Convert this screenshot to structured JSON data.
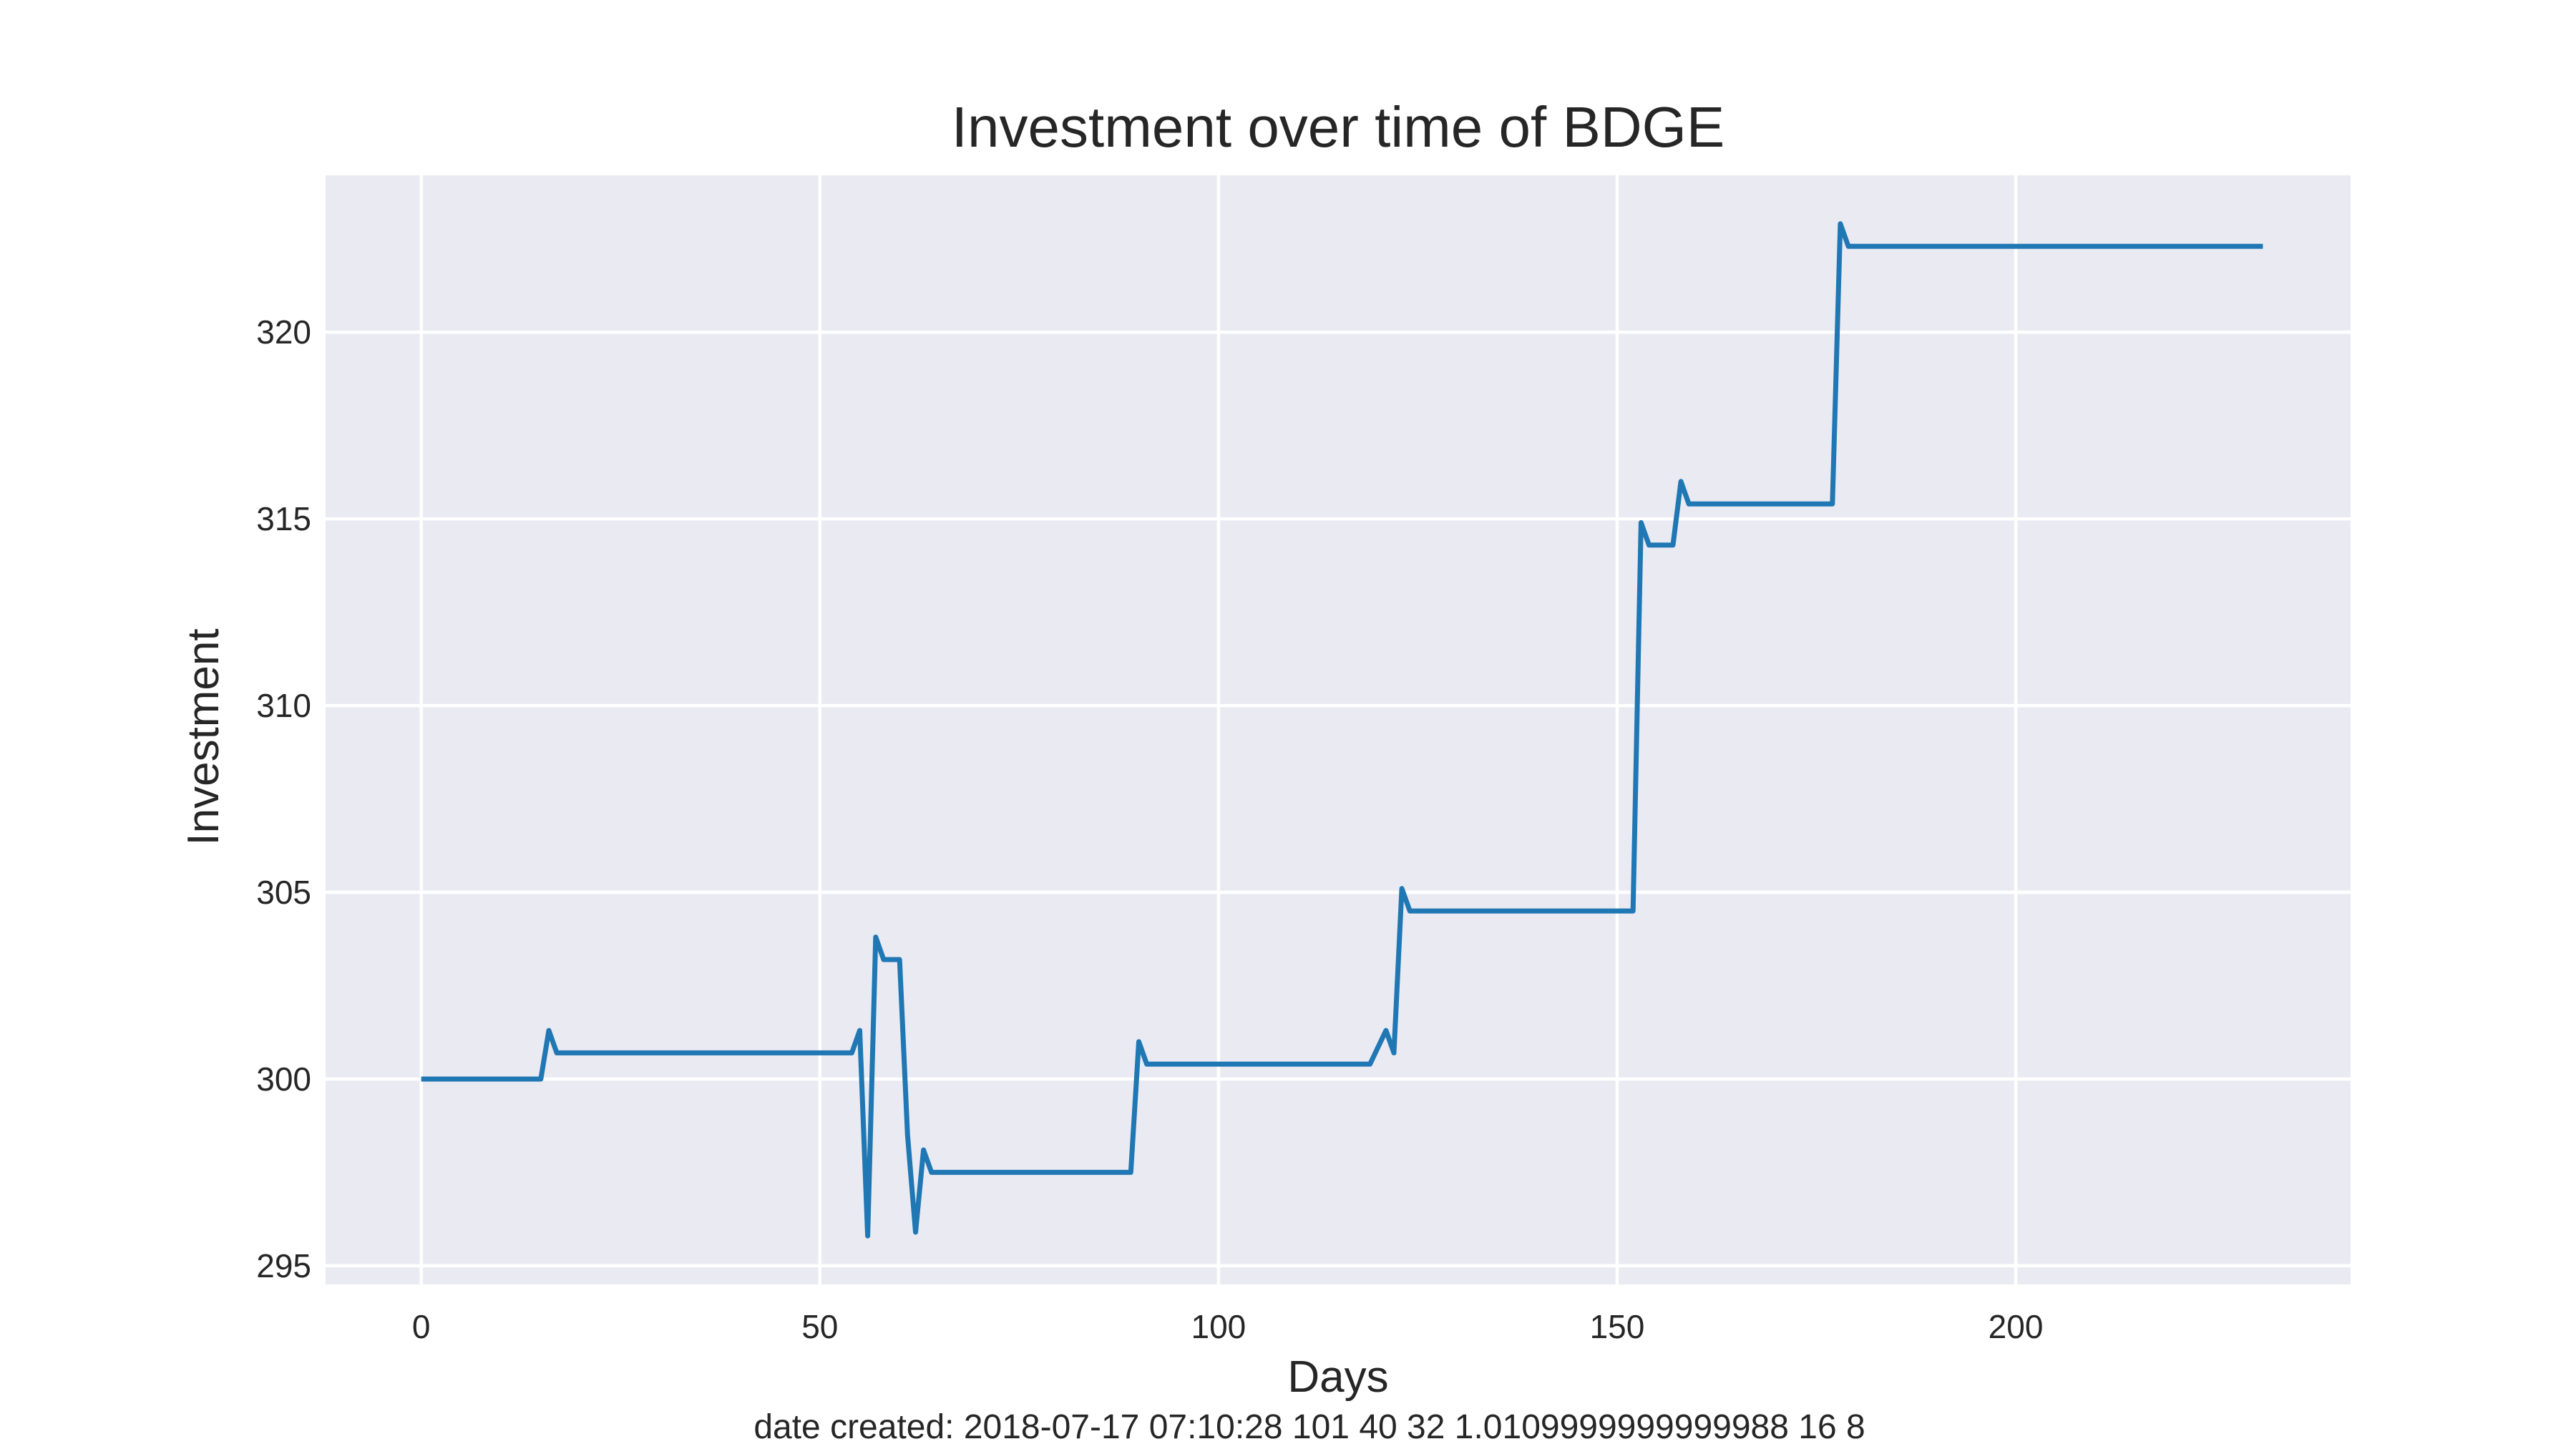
{
  "chart_data": {
    "type": "line",
    "title": "Investment over time of BDGE",
    "xlabel": "Days",
    "ylabel": "Investment",
    "xlim": [
      -12,
      242
    ],
    "ylim": [
      294.5,
      324.2
    ],
    "xticks": [
      0,
      50,
      100,
      150,
      200
    ],
    "yticks": [
      295,
      300,
      305,
      310,
      315,
      320
    ],
    "grid": true,
    "colors": {
      "background": "#eaeaf2",
      "grid": "#ffffff",
      "line": "#1f77b4"
    },
    "series": [
      {
        "name": "",
        "x": [
          0,
          15,
          16,
          17,
          54,
          55,
          56,
          57,
          58,
          60,
          61,
          62,
          63,
          64,
          89,
          90,
          91,
          119,
          121,
          122,
          123,
          124,
          152,
          153,
          154,
          157,
          158,
          159,
          177,
          178,
          179,
          231
        ],
        "y": [
          300,
          300,
          301.3,
          300.7,
          300.7,
          301.3,
          295.8,
          303.8,
          303.2,
          303.2,
          298.5,
          295.9,
          298.1,
          297.5,
          297.5,
          301,
          300.4,
          300.4,
          301.3,
          300.7,
          305.1,
          304.5,
          304.5,
          314.9,
          314.3,
          314.3,
          316,
          315.4,
          315.4,
          322.9,
          322.3,
          322.3
        ]
      }
    ]
  },
  "footnote": "date created: 2018-07-17 07:10:28 101 40 32 1.0109999999999988 16 8"
}
